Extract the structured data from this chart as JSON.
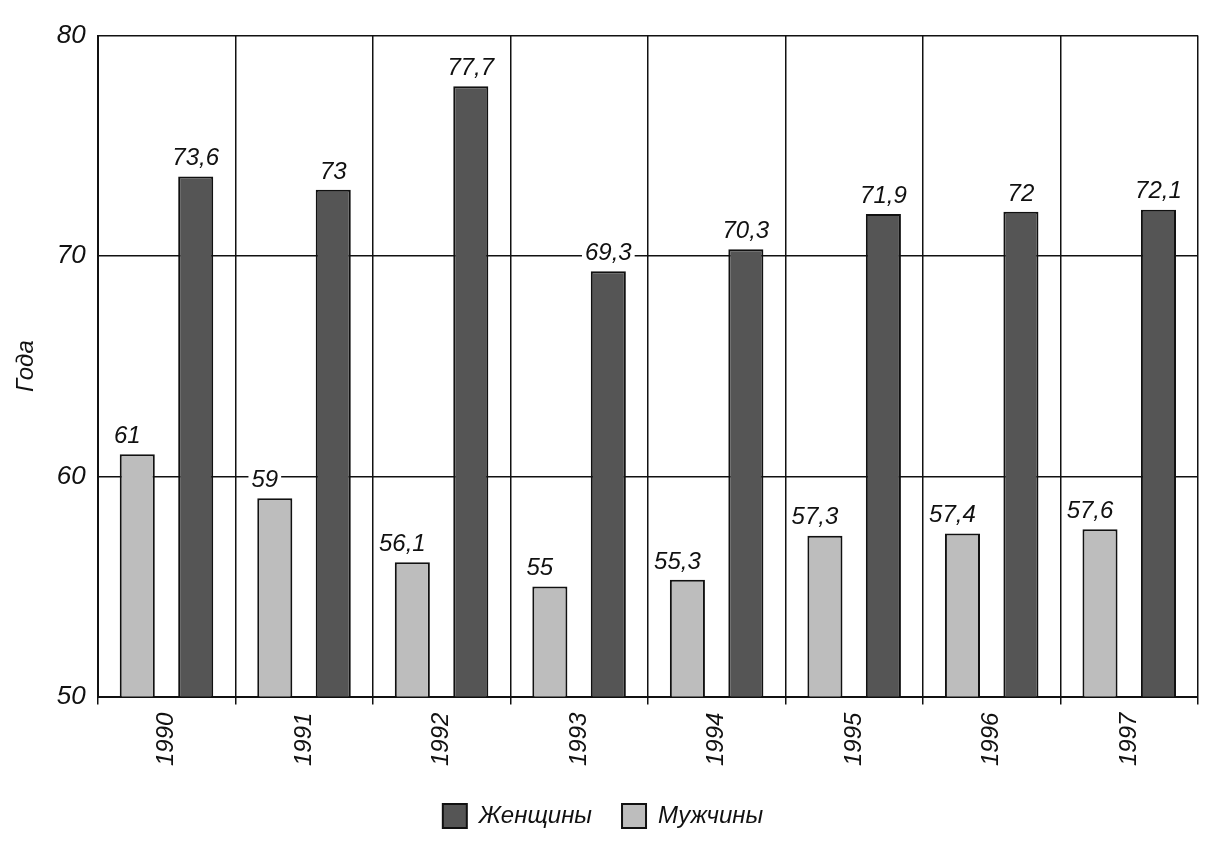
{
  "chart_data": {
    "type": "bar",
    "ylabel": "Года",
    "categories": [
      "1990",
      "1991",
      "1992",
      "1993",
      "1994",
      "1995",
      "1996",
      "1997"
    ],
    "series": [
      {
        "name": "Мужчины",
        "color": "#bdbdbd",
        "values": [
          61,
          59,
          56.1,
          55,
          55.3,
          57.3,
          57.4,
          57.6
        ],
        "value_labels": [
          "61",
          "59",
          "56,1",
          "55",
          "55,3",
          "57,3",
          "57,4",
          "57,6"
        ]
      },
      {
        "name": "Женщины",
        "color": "#555555",
        "values": [
          73.6,
          73,
          77.7,
          69.3,
          70.3,
          71.9,
          72,
          72.1
        ],
        "value_labels": [
          "73,6",
          "73",
          "77,7",
          "69,3",
          "70,3",
          "71,9",
          "72",
          "72,1"
        ]
      }
    ],
    "ylim": [
      50,
      80
    ],
    "yticks": [
      50,
      60,
      70,
      80
    ],
    "grid": true,
    "legend": "bottom"
  }
}
